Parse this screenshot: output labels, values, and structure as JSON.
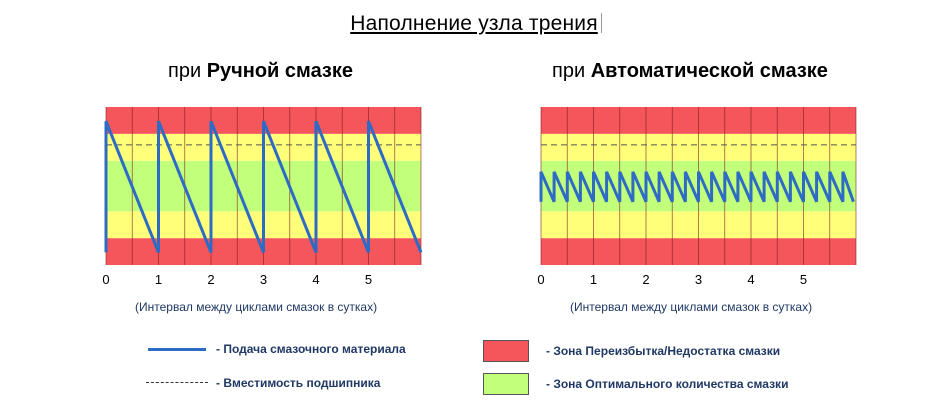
{
  "page": {
    "title": "Наполнение узла трения",
    "left_title_prefix": "при ",
    "left_title_bold": "Ручной смазке",
    "right_title_prefix": "при ",
    "right_title_bold": "Автоматической смазке"
  },
  "colors": {
    "red_zone": "#f4565c",
    "yellow_zone": "#ffff7a",
    "green_zone": "#c2ff7a",
    "series_line": "#2e6bc4",
    "capacity_line": "#555555",
    "grid_line": "#7a1a1a"
  },
  "legend": {
    "supply_label": "- Подача смазочного материала",
    "capacity_label": "Вместимость подшипника",
    "red_zone_label": "- Зона Переизбытка/Недостатка смазки",
    "green_zone_label": "- Зона Оптимального количества смазки"
  },
  "chart_data": [
    {
      "type": "line",
      "subtitle": "при Ручной смазке",
      "xlabel": "(Интервал между циклами смазок в сутках)",
      "ylabel": "",
      "xlim": [
        0,
        6
      ],
      "ylim": [
        0,
        100
      ],
      "x_ticks": [
        "0",
        "1",
        "2",
        "3",
        "4",
        "5"
      ],
      "zones": [
        {
          "zone": "red",
          "from": 0,
          "to": 17
        },
        {
          "zone": "yellow",
          "from": 17,
          "to": 34
        },
        {
          "zone": "green",
          "from": 34,
          "to": 66
        },
        {
          "zone": "yellow",
          "from": 66,
          "to": 83
        },
        {
          "zone": "red",
          "from": 83,
          "to": 100
        }
      ],
      "capacity_level": 76,
      "series": [
        {
          "x": [
            0,
            0,
            1,
            1,
            2,
            2,
            3,
            3,
            4,
            4,
            5,
            5,
            6
          ],
          "y": [
            8,
            91,
            8,
            91,
            8,
            91,
            8,
            91,
            8,
            91,
            8,
            91,
            8
          ]
        }
      ]
    },
    {
      "type": "line",
      "subtitle": "при Автоматической смазке",
      "xlabel": "(Интервал между циклами смазок в сутках)",
      "ylabel": "",
      "xlim": [
        0,
        6
      ],
      "ylim": [
        0,
        100
      ],
      "x_ticks": [
        "0",
        "1",
        "2",
        "3",
        "4",
        "5"
      ],
      "zones": [
        {
          "zone": "red",
          "from": 0,
          "to": 17
        },
        {
          "zone": "yellow",
          "from": 17,
          "to": 34
        },
        {
          "zone": "green",
          "from": 34,
          "to": 66
        },
        {
          "zone": "yellow",
          "from": 66,
          "to": 83
        },
        {
          "zone": "red",
          "from": 83,
          "to": 100
        }
      ],
      "capacity_level": 76,
      "series": [
        {
          "x": [
            0,
            0,
            0.25,
            0.25,
            0.5,
            0.5,
            0.75,
            0.75,
            1,
            1,
            1.25,
            1.25,
            1.5,
            1.5,
            1.75,
            1.75,
            2,
            2,
            2.25,
            2.25,
            2.5,
            2.5,
            2.75,
            2.75,
            3,
            3,
            3.25,
            3.25,
            3.5,
            3.5,
            3.75,
            3.75,
            4,
            4,
            4.25,
            4.25,
            4.5,
            4.5,
            4.75,
            4.75,
            5,
            5,
            5.25,
            5.25,
            5.5,
            5.5,
            5.75,
            5.75,
            5.95
          ],
          "y": [
            40,
            59,
            40,
            59,
            40,
            59,
            40,
            59,
            40,
            59,
            40,
            59,
            40,
            59,
            40,
            59,
            40,
            59,
            40,
            59,
            40,
            59,
            40,
            59,
            40,
            59,
            40,
            59,
            40,
            59,
            40,
            59,
            40,
            59,
            40,
            59,
            40,
            59,
            40,
            59,
            40,
            59,
            40,
            59,
            40,
            59,
            40,
            59,
            40
          ]
        }
      ]
    }
  ]
}
